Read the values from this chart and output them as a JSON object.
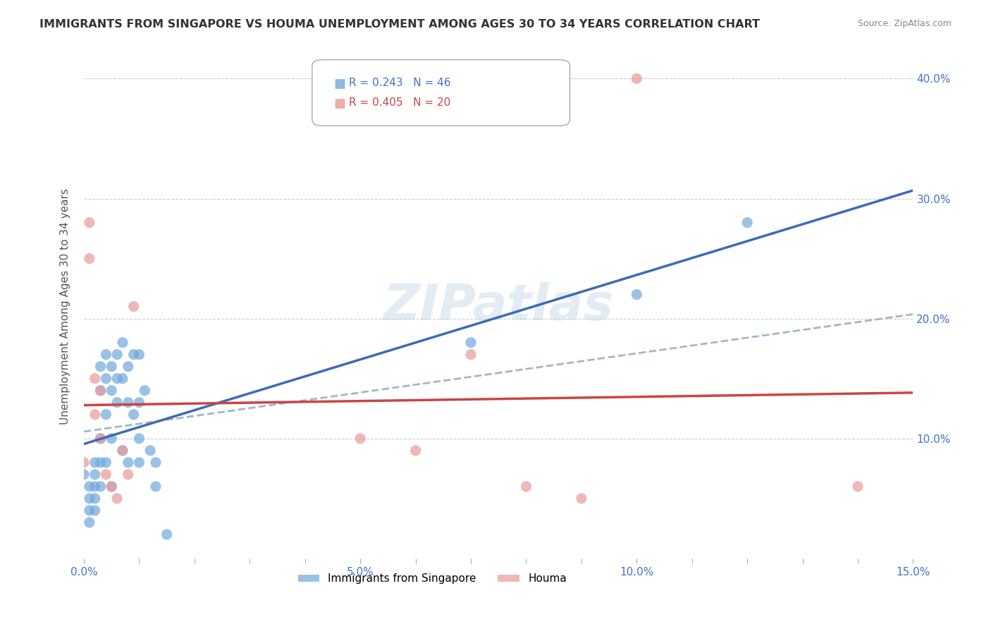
{
  "title": "IMMIGRANTS FROM SINGAPORE VS HOUMA UNEMPLOYMENT AMONG AGES 30 TO 34 YEARS CORRELATION CHART",
  "source": "Source: ZipAtlas.com",
  "ylabel": "Unemployment Among Ages 30 to 34 years",
  "xlim": [
    0.0,
    0.15
  ],
  "ylim": [
    0.0,
    0.42
  ],
  "ytick_labels": [
    "",
    "10.0%",
    "20.0%",
    "30.0%",
    "40.0%"
  ],
  "ytick_values": [
    0.0,
    0.1,
    0.2,
    0.3,
    0.4
  ],
  "singapore_color": "#6fa8dc",
  "houma_color": "#ea9999",
  "singapore_line_color": "#3d6bb5",
  "houma_line_color": "#cc4444",
  "dashed_line_color": "#a0b8c8",
  "watermark": "ZIPatlas",
  "singapore_x": [
    0.0,
    0.001,
    0.001,
    0.001,
    0.001,
    0.002,
    0.002,
    0.002,
    0.002,
    0.002,
    0.003,
    0.003,
    0.003,
    0.003,
    0.003,
    0.004,
    0.004,
    0.004,
    0.004,
    0.005,
    0.005,
    0.005,
    0.005,
    0.006,
    0.006,
    0.006,
    0.007,
    0.007,
    0.007,
    0.008,
    0.008,
    0.008,
    0.009,
    0.009,
    0.01,
    0.01,
    0.01,
    0.01,
    0.011,
    0.012,
    0.013,
    0.013,
    0.015,
    0.07,
    0.1,
    0.12
  ],
  "singapore_y": [
    0.07,
    0.06,
    0.05,
    0.04,
    0.03,
    0.08,
    0.07,
    0.06,
    0.05,
    0.04,
    0.16,
    0.14,
    0.1,
    0.08,
    0.06,
    0.17,
    0.15,
    0.12,
    0.08,
    0.16,
    0.14,
    0.1,
    0.06,
    0.17,
    0.15,
    0.13,
    0.18,
    0.15,
    0.09,
    0.16,
    0.13,
    0.08,
    0.17,
    0.12,
    0.17,
    0.13,
    0.1,
    0.08,
    0.14,
    0.09,
    0.08,
    0.06,
    0.02,
    0.18,
    0.22,
    0.28
  ],
  "houma_x": [
    0.0,
    0.001,
    0.001,
    0.002,
    0.002,
    0.003,
    0.003,
    0.004,
    0.005,
    0.006,
    0.007,
    0.008,
    0.009,
    0.05,
    0.06,
    0.07,
    0.08,
    0.09,
    0.1,
    0.14
  ],
  "houma_y": [
    0.08,
    0.28,
    0.25,
    0.15,
    0.12,
    0.14,
    0.1,
    0.07,
    0.06,
    0.05,
    0.09,
    0.07,
    0.21,
    0.1,
    0.09,
    0.17,
    0.06,
    0.05,
    0.4,
    0.06
  ]
}
